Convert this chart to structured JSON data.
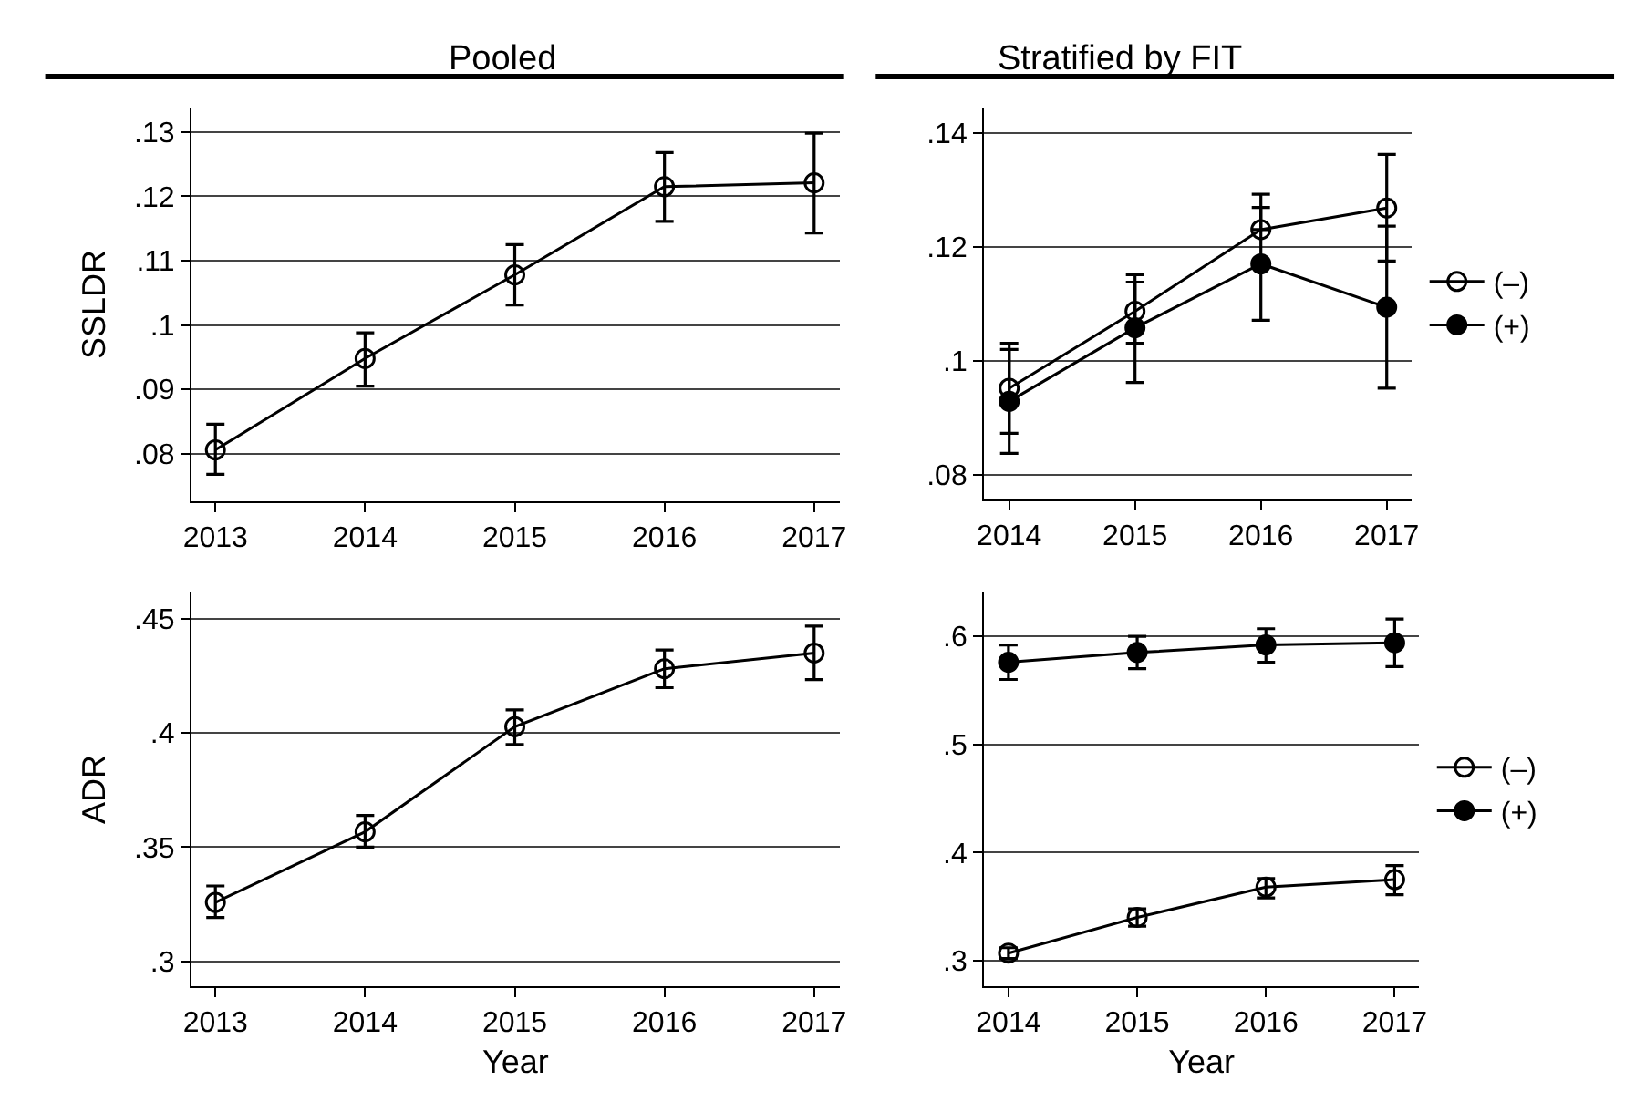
{
  "chart_data": [
    {
      "type": "line",
      "title": "Pooled",
      "ylabel": "SSLDR",
      "x": [
        2013,
        2014,
        2015,
        2016,
        2017
      ],
      "xlim": [
        2012.84,
        2017.17
      ],
      "xticks": [
        2013,
        2014,
        2015,
        2016,
        2017
      ],
      "ylim": [
        0.0726,
        0.1338
      ],
      "yticks": [
        {
          "value": 0.08,
          "label": ".08"
        },
        {
          "value": 0.09,
          "label": ".09"
        },
        {
          "value": 0.1,
          "label": ".1"
        },
        {
          "value": 0.11,
          "label": ".11"
        },
        {
          "value": 0.12,
          "label": ".12"
        },
        {
          "value": 0.13,
          "label": ".13"
        }
      ],
      "grid": "y",
      "marker": "circle",
      "legend": false,
      "series": [
        {
          "color": "#000000",
          "values": [
            0.0806,
            0.0948,
            0.1078,
            0.1215,
            0.1221
          ],
          "errors": [
            [
              0.0768,
              0.0846
            ],
            [
              0.0905,
              0.0988
            ],
            [
              0.1031,
              0.1125
            ],
            [
              0.1161,
              0.1268
            ],
            [
              0.1143,
              0.1298
            ]
          ]
        }
      ]
    },
    {
      "type": "line",
      "title": "Stratified by FIT",
      "x": [
        2014,
        2015,
        2016,
        2017
      ],
      "xlim": [
        2013.8,
        2017.2
      ],
      "xticks": [
        2014,
        2015,
        2016,
        2017
      ],
      "ylim": [
        0.0757,
        0.1444
      ],
      "yticks": [
        {
          "value": 0.08,
          "label": ".08"
        },
        {
          "value": 0.1,
          "label": ".1"
        },
        {
          "value": 0.12,
          "label": ".12"
        },
        {
          "value": 0.14,
          "label": ".14"
        }
      ],
      "grid": "y",
      "marker": "circle",
      "legend": "right",
      "series": [
        {
          "name": "(–)",
          "color": "#000000",
          "values": [
            0.0952,
            0.1087,
            0.123,
            0.1268
          ],
          "errors": [
            [
              0.0873,
              0.1031
            ],
            [
              0.1031,
              0.1151
            ],
            [
              0.123,
              0.1292
            ],
            [
              0.1175,
              0.1362
            ]
          ]
        },
        {
          "name": "(+)",
          "color": "#000000",
          "values": [
            0.0929,
            0.1058,
            0.117,
            0.1094
          ],
          "errors": [
            [
              0.0838,
              0.102
            ],
            [
              0.0962,
              0.1138
            ],
            [
              0.1071,
              0.1269
            ],
            [
              0.0952,
              0.1236
            ]
          ]
        }
      ]
    },
    {
      "type": "line",
      "xlabel": "Year",
      "ylabel": "ADR",
      "x": [
        2013,
        2014,
        2015,
        2016,
        2017
      ],
      "xlim": [
        2012.84,
        2017.17
      ],
      "xticks": [
        2013,
        2014,
        2015,
        2016,
        2017
      ],
      "ylim": [
        0.2891,
        0.4615
      ],
      "yticks": [
        {
          "value": 0.3,
          "label": ".3"
        },
        {
          "value": 0.35,
          "label": ".35"
        },
        {
          "value": 0.4,
          "label": ".4"
        },
        {
          "value": 0.45,
          "label": ".45"
        }
      ],
      "grid": "y",
      "marker": "circle",
      "legend": false,
      "series": [
        {
          "color": "#000000",
          "values": [
            0.3258,
            0.3567,
            0.4027,
            0.4281,
            0.435
          ],
          "errors": [
            [
              0.3192,
              0.333
            ],
            [
              0.35,
              0.3639
            ],
            [
              0.3949,
              0.4101
            ],
            [
              0.4198,
              0.4363
            ],
            [
              0.4233,
              0.4468
            ]
          ]
        }
      ]
    },
    {
      "type": "line",
      "xlabel": "Year",
      "x": [
        2014,
        2015,
        2016,
        2017
      ],
      "xlim": [
        2013.81,
        2017.19
      ],
      "xticks": [
        2014,
        2015,
        2016,
        2017
      ],
      "ylim": [
        0.2764,
        0.6405
      ],
      "yticks": [
        {
          "value": 0.3,
          "label": ".3"
        },
        {
          "value": 0.4,
          "label": ".4"
        },
        {
          "value": 0.5,
          "label": ".5"
        },
        {
          "value": 0.6,
          "label": ".6"
        }
      ],
      "grid": "y",
      "marker": "circle",
      "legend": "right",
      "series": [
        {
          "name": "(–)",
          "color": "#000000",
          "values": [
            0.307,
            0.34,
            0.368,
            0.375
          ],
          "errors": [
            [
              0.302,
              0.312
            ],
            [
              0.332,
              0.348
            ],
            [
              0.358,
              0.376
            ],
            [
              0.361,
              0.388
            ]
          ]
        },
        {
          "name": "(+)",
          "color": "#000000",
          "values": [
            0.576,
            0.585,
            0.592,
            0.594
          ],
          "errors": [
            [
              0.56,
              0.592
            ],
            [
              0.57,
              0.6
            ],
            [
              0.576,
              0.607
            ],
            [
              0.572,
              0.616
            ]
          ]
        }
      ]
    }
  ]
}
